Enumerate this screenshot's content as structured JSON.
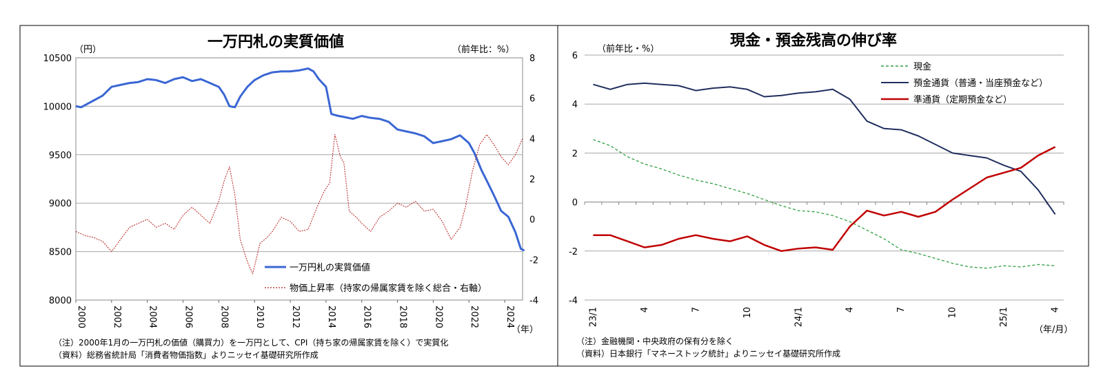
{
  "chart_data": [
    {
      "type": "line",
      "title": "一万円札の実質価値",
      "ylabel_left": "（円）",
      "ylabel_right": "（前年比：%）",
      "xlabel": "（年）",
      "ylim_left": [
        8000,
        10500
      ],
      "ylim_right": [
        -4,
        8
      ],
      "xlim": [
        2000,
        2025
      ],
      "left_ticks": [
        "8000",
        "8500",
        "9000",
        "9500",
        "10000",
        "10500"
      ],
      "right_ticks": [
        "-4",
        "-2",
        "0",
        "2",
        "4",
        "6",
        "8"
      ],
      "x_ticks": [
        "2000",
        "2002",
        "2004",
        "2006",
        "2008",
        "2010",
        "2012",
        "2014",
        "2016",
        "2018",
        "2020",
        "2022",
        "2024"
      ],
      "grid": true,
      "legend_position": "bottom-center",
      "series": [
        {
          "name": "一万円札の実質価値",
          "axis": "left",
          "color": "#3a66d4",
          "style": "solid",
          "points": [
            [
              2000,
              10000
            ],
            [
              2000.3,
              9990
            ],
            [
              2000.7,
              10030
            ],
            [
              2001,
              10060
            ],
            [
              2001.5,
              10110
            ],
            [
              2002,
              10200
            ],
            [
              2002.5,
              10220
            ],
            [
              2003,
              10240
            ],
            [
              2003.5,
              10250
            ],
            [
              2004,
              10280
            ],
            [
              2004.5,
              10270
            ],
            [
              2005,
              10240
            ],
            [
              2005.5,
              10280
            ],
            [
              2006,
              10300
            ],
            [
              2006.5,
              10260
            ],
            [
              2007,
              10280
            ],
            [
              2007.5,
              10240
            ],
            [
              2008,
              10200
            ],
            [
              2008.3,
              10120
            ],
            [
              2008.6,
              10000
            ],
            [
              2008.9,
              9990
            ],
            [
              2009.2,
              10100
            ],
            [
              2009.6,
              10200
            ],
            [
              2010,
              10270
            ],
            [
              2010.5,
              10320
            ],
            [
              2011,
              10350
            ],
            [
              2011.5,
              10360
            ],
            [
              2012,
              10360
            ],
            [
              2012.5,
              10370
            ],
            [
              2013,
              10390
            ],
            [
              2013.3,
              10360
            ],
            [
              2013.6,
              10280
            ],
            [
              2014,
              10200
            ],
            [
              2014.3,
              9920
            ],
            [
              2014.7,
              9900
            ],
            [
              2015,
              9890
            ],
            [
              2015.5,
              9870
            ],
            [
              2016,
              9900
            ],
            [
              2016.5,
              9880
            ],
            [
              2017,
              9870
            ],
            [
              2017.5,
              9840
            ],
            [
              2018,
              9760
            ],
            [
              2018.5,
              9740
            ],
            [
              2019,
              9720
            ],
            [
              2019.5,
              9690
            ],
            [
              2020,
              9620
            ],
            [
              2020.5,
              9640
            ],
            [
              2021,
              9660
            ],
            [
              2021.5,
              9700
            ],
            [
              2022,
              9620
            ],
            [
              2022.3,
              9520
            ],
            [
              2022.7,
              9340
            ],
            [
              2023,
              9230
            ],
            [
              2023.4,
              9080
            ],
            [
              2023.8,
              8920
            ],
            [
              2024.2,
              8860
            ],
            [
              2024.6,
              8700
            ],
            [
              2024.9,
              8530
            ],
            [
              2025.1,
              8510
            ]
          ]
        },
        {
          "name": "物価上昇率（持家の帰属家賃を除く総合・右軸）",
          "axis": "right",
          "color": "#b41e1e",
          "style": "dotted",
          "points": [
            [
              2000,
              -0.6
            ],
            [
              2000.5,
              -0.8
            ],
            [
              2001,
              -0.9
            ],
            [
              2001.5,
              -1.1
            ],
            [
              2002,
              -1.6
            ],
            [
              2002.5,
              -1.0
            ],
            [
              2003,
              -0.4
            ],
            [
              2003.5,
              -0.2
            ],
            [
              2004,
              0.0
            ],
            [
              2004.5,
              -0.4
            ],
            [
              2005,
              -0.2
            ],
            [
              2005.5,
              -0.5
            ],
            [
              2006,
              0.2
            ],
            [
              2006.5,
              0.6
            ],
            [
              2007,
              0.2
            ],
            [
              2007.5,
              -0.2
            ],
            [
              2008,
              0.9
            ],
            [
              2008.3,
              1.9
            ],
            [
              2008.6,
              2.6
            ],
            [
              2008.9,
              1.2
            ],
            [
              2009.2,
              -1.0
            ],
            [
              2009.6,
              -2.1
            ],
            [
              2009.9,
              -2.7
            ],
            [
              2010.3,
              -1.2
            ],
            [
              2010.7,
              -0.9
            ],
            [
              2011,
              -0.6
            ],
            [
              2011.5,
              0.1
            ],
            [
              2012,
              -0.1
            ],
            [
              2012.5,
              -0.6
            ],
            [
              2013,
              -0.5
            ],
            [
              2013.5,
              0.6
            ],
            [
              2013.9,
              1.4
            ],
            [
              2014.2,
              1.8
            ],
            [
              2014.5,
              4.2
            ],
            [
              2014.8,
              3.1
            ],
            [
              2015,
              2.8
            ],
            [
              2015.3,
              0.4
            ],
            [
              2015.7,
              0.1
            ],
            [
              2016,
              -0.2
            ],
            [
              2016.5,
              -0.6
            ],
            [
              2017,
              0.1
            ],
            [
              2017.5,
              0.4
            ],
            [
              2018,
              0.8
            ],
            [
              2018.5,
              0.6
            ],
            [
              2019,
              0.9
            ],
            [
              2019.5,
              0.4
            ],
            [
              2020,
              0.5
            ],
            [
              2020.5,
              -0.1
            ],
            [
              2021,
              -1.0
            ],
            [
              2021.5,
              -0.4
            ],
            [
              2021.8,
              0.6
            ],
            [
              2022.2,
              2.4
            ],
            [
              2022.6,
              3.7
            ],
            [
              2023,
              4.2
            ],
            [
              2023.4,
              3.7
            ],
            [
              2023.8,
              3.1
            ],
            [
              2024.2,
              2.7
            ],
            [
              2024.6,
              3.2
            ],
            [
              2025,
              4.0
            ]
          ]
        }
      ],
      "notes": [
        "（注）2000年1月の一万円札の価値（購買力）を一万円として、CPI（持ち家の帰属家賃を除く）で実質化",
        "（資料）総務省統計局「消費者物価指数」よりニッセイ基礎研究所作成"
      ]
    },
    {
      "type": "line",
      "title": "現金・預金残高の伸び率",
      "ylabel": "（前年比・%）",
      "xlabel": "（年/月）",
      "ylim": [
        -4,
        6
      ],
      "y_ticks": [
        "-4",
        "-2",
        "0",
        "2",
        "4",
        "6"
      ],
      "categories": [
        "23/1",
        "2",
        "3",
        "4",
        "5",
        "6",
        "7",
        "8",
        "9",
        "10",
        "11",
        "12",
        "24/1",
        "2",
        "3",
        "4",
        "5",
        "6",
        "7",
        "8",
        "9",
        "10",
        "11",
        "12",
        "25/1",
        "2",
        "3",
        "4"
      ],
      "x_tick_labels": [
        "23/1",
        "4",
        "7",
        "10",
        "24/1",
        "4",
        "7",
        "10",
        "25/1",
        "4"
      ],
      "grid": true,
      "legend_position": "top-right",
      "series": [
        {
          "name": "現金",
          "color": "#2e9e3e",
          "style": "dashed",
          "values": [
            2.55,
            2.3,
            1.85,
            1.55,
            1.35,
            1.1,
            0.9,
            0.75,
            0.55,
            0.35,
            0.1,
            -0.15,
            -0.35,
            -0.4,
            -0.55,
            -0.8,
            -1.15,
            -1.5,
            -1.95,
            -2.1,
            -2.3,
            -2.5,
            -2.65,
            -2.7,
            -2.6,
            -2.65,
            -2.55,
            -2.6
          ]
        },
        {
          "name": "預金通貨（普通・当座預金など）",
          "color": "#1f2e5e",
          "style": "solid",
          "values": [
            4.8,
            4.6,
            4.8,
            4.85,
            4.8,
            4.75,
            4.55,
            4.65,
            4.7,
            4.6,
            4.3,
            4.35,
            4.45,
            4.5,
            4.6,
            4.2,
            3.3,
            3.0,
            2.95,
            2.7,
            2.35,
            2.0,
            1.9,
            1.8,
            1.5,
            1.25,
            0.5,
            -0.5
          ]
        },
        {
          "name": "準通貨（定期預金など）",
          "color": "#c00000",
          "style": "solid",
          "values": [
            -1.35,
            -1.35,
            -1.6,
            -1.85,
            -1.75,
            -1.5,
            -1.35,
            -1.5,
            -1.6,
            -1.4,
            -1.75,
            -2.0,
            -1.9,
            -1.85,
            -1.95,
            -1.0,
            -0.35,
            -0.55,
            -0.4,
            -0.6,
            -0.4,
            0.1,
            0.55,
            1.0,
            1.2,
            1.4,
            1.9,
            2.25
          ]
        }
      ],
      "notes": [
        "（注）金融機関・中央政府の保有分を除く",
        "（資料）日本銀行「マネーストック統計」よりニッセイ基礎研究所作成"
      ]
    }
  ]
}
